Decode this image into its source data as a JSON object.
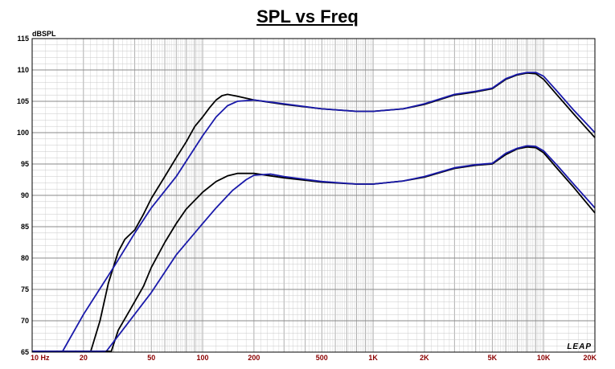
{
  "chart_data": {
    "type": "line",
    "title": "SPL vs Freq",
    "ylabel": "dBSPL",
    "xscale": "log",
    "xlim": [
      10,
      20000
    ],
    "ylim": [
      65,
      115
    ],
    "grid": true,
    "x_tick_labels": [
      {
        "v": 10,
        "label": "10 Hz"
      },
      {
        "v": 20,
        "label": "20"
      },
      {
        "v": 50,
        "label": "50"
      },
      {
        "v": 100,
        "label": "100"
      },
      {
        "v": 200,
        "label": "200"
      },
      {
        "v": 500,
        "label": "500"
      },
      {
        "v": 1000,
        "label": "1K"
      },
      {
        "v": 2000,
        "label": "2K"
      },
      {
        "v": 5000,
        "label": "5K"
      },
      {
        "v": 10000,
        "label": "10K"
      },
      {
        "v": 20000,
        "label": "20K"
      }
    ],
    "y_ticks": [
      65,
      70,
      75,
      80,
      85,
      90,
      95,
      100,
      105,
      110,
      115
    ],
    "logo": "LEAP",
    "series": [
      {
        "color": "#000000",
        "points": [
          [
            22,
            65
          ],
          [
            25,
            70
          ],
          [
            28,
            76
          ],
          [
            32,
            81
          ],
          [
            35,
            83
          ],
          [
            40,
            84.5
          ],
          [
            45,
            87
          ],
          [
            50,
            89.5
          ],
          [
            60,
            93
          ],
          [
            70,
            96
          ],
          [
            80,
            98.5
          ],
          [
            90,
            101
          ],
          [
            100,
            102.5
          ],
          [
            110,
            104
          ],
          [
            120,
            105.2
          ],
          [
            130,
            105.9
          ],
          [
            140,
            106.1
          ],
          [
            160,
            105.8
          ],
          [
            200,
            105.2
          ],
          [
            300,
            104.5
          ],
          [
            500,
            103.8
          ],
          [
            800,
            103.4
          ],
          [
            1000,
            103.4
          ],
          [
            1500,
            103.8
          ],
          [
            2000,
            104.5
          ],
          [
            3000,
            106
          ],
          [
            4000,
            106.5
          ],
          [
            5000,
            107
          ],
          [
            6000,
            108.5
          ],
          [
            7000,
            109.2
          ],
          [
            8000,
            109.5
          ],
          [
            9000,
            109.4
          ],
          [
            10000,
            108.5
          ],
          [
            12000,
            106
          ],
          [
            15000,
            103
          ],
          [
            20000,
            99.2
          ]
        ]
      },
      {
        "color": "#1a1aaa",
        "points": [
          [
            15,
            65
          ],
          [
            20,
            71
          ],
          [
            30,
            78.5
          ],
          [
            40,
            84
          ],
          [
            50,
            88
          ],
          [
            70,
            93
          ],
          [
            100,
            99.5
          ],
          [
            120,
            102.5
          ],
          [
            140,
            104.3
          ],
          [
            160,
            105
          ],
          [
            200,
            105.2
          ],
          [
            300,
            104.6
          ],
          [
            500,
            103.8
          ],
          [
            800,
            103.4
          ],
          [
            1000,
            103.4
          ],
          [
            1500,
            103.8
          ],
          [
            2000,
            104.6
          ],
          [
            3000,
            106.1
          ],
          [
            4000,
            106.6
          ],
          [
            5000,
            107.1
          ],
          [
            6000,
            108.6
          ],
          [
            7000,
            109.3
          ],
          [
            8000,
            109.6
          ],
          [
            9000,
            109.6
          ],
          [
            10000,
            109
          ],
          [
            12000,
            106.6
          ],
          [
            15000,
            103.6
          ],
          [
            20000,
            100
          ]
        ]
      },
      {
        "color": "#000000",
        "points": [
          [
            29,
            65
          ],
          [
            32,
            68.5
          ],
          [
            38,
            72
          ],
          [
            45,
            75.5
          ],
          [
            50,
            78.5
          ],
          [
            60,
            82.5
          ],
          [
            70,
            85.5
          ],
          [
            80,
            87.8
          ],
          [
            100,
            90.5
          ],
          [
            120,
            92.2
          ],
          [
            140,
            93.1
          ],
          [
            160,
            93.5
          ],
          [
            200,
            93.5
          ],
          [
            300,
            92.8
          ],
          [
            500,
            92.1
          ],
          [
            800,
            91.8
          ],
          [
            1000,
            91.8
          ],
          [
            1500,
            92.3
          ],
          [
            2000,
            92.9
          ],
          [
            3000,
            94.3
          ],
          [
            4000,
            94.8
          ],
          [
            5000,
            95
          ],
          [
            6000,
            96.5
          ],
          [
            7000,
            97.4
          ],
          [
            8000,
            97.7
          ],
          [
            9000,
            97.6
          ],
          [
            10000,
            96.8
          ],
          [
            12000,
            94.3
          ],
          [
            15000,
            91.3
          ],
          [
            20000,
            87.2
          ]
        ]
      },
      {
        "color": "#1a1aaa",
        "points": [
          [
            27,
            65
          ],
          [
            35,
            69
          ],
          [
            50,
            74.5
          ],
          [
            70,
            80.5
          ],
          [
            100,
            85.5
          ],
          [
            120,
            88
          ],
          [
            150,
            90.8
          ],
          [
            180,
            92.5
          ],
          [
            200,
            93.2
          ],
          [
            250,
            93.4
          ],
          [
            300,
            93
          ],
          [
            500,
            92.2
          ],
          [
            800,
            91.8
          ],
          [
            1000,
            91.8
          ],
          [
            1500,
            92.3
          ],
          [
            2000,
            93
          ],
          [
            3000,
            94.4
          ],
          [
            4000,
            94.9
          ],
          [
            5000,
            95.1
          ],
          [
            6000,
            96.7
          ],
          [
            7000,
            97.5
          ],
          [
            8000,
            97.9
          ],
          [
            9000,
            97.8
          ],
          [
            10000,
            97.1
          ],
          [
            12000,
            94.8
          ],
          [
            15000,
            91.8
          ],
          [
            20000,
            88
          ]
        ]
      }
    ]
  }
}
